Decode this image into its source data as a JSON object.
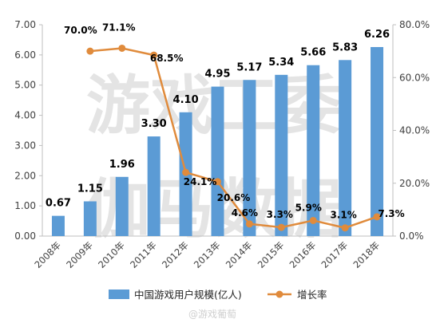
{
  "chart_data": {
    "type": "bar",
    "categories": [
      "2008年",
      "2009年",
      "2010年",
      "2011年",
      "2012年",
      "2013年",
      "2014年",
      "2015年",
      "2016年",
      "2017年",
      "2018年"
    ],
    "series": [
      {
        "name": "中国游戏用户规模(亿人)",
        "type": "bar",
        "axis": "left",
        "values": [
          0.67,
          1.15,
          1.96,
          3.3,
          4.1,
          4.95,
          5.17,
          5.34,
          5.66,
          5.83,
          6.26
        ],
        "labels": [
          "0.67",
          "1.15",
          "1.96",
          "3.30",
          "4.10",
          "4.95",
          "5.17",
          "5.34",
          "5.66",
          "5.83",
          "6.26"
        ],
        "color": "#5b9bd5"
      },
      {
        "name": "增长率",
        "type": "line",
        "axis": "right",
        "values": [
          null,
          70.0,
          71.1,
          68.5,
          24.1,
          20.6,
          4.6,
          3.3,
          5.9,
          3.1,
          7.3
        ],
        "labels": [
          "",
          "70.0%",
          "71.1%",
          "68.5%",
          "24.1%",
          "20.6%",
          "4.6%",
          "3.3%",
          "5.9%",
          "3.1%",
          "7.3%"
        ],
        "color": "#e08b3c"
      }
    ],
    "y_left": {
      "range": [
        0,
        7
      ],
      "ticks": [
        "0.00",
        "1.00",
        "2.00",
        "3.00",
        "4.00",
        "5.00",
        "6.00",
        "7.00"
      ]
    },
    "y_right": {
      "range": [
        0,
        80
      ],
      "ticks": [
        "0.0%",
        "20.0%",
        "40.0%",
        "60.0%",
        "80.0%"
      ]
    },
    "grid": false,
    "legend_position": "bottom",
    "watermark": {
      "line1": "游戏工委",
      "line2": "伽马数据"
    },
    "credit": "@游戏葡萄"
  }
}
